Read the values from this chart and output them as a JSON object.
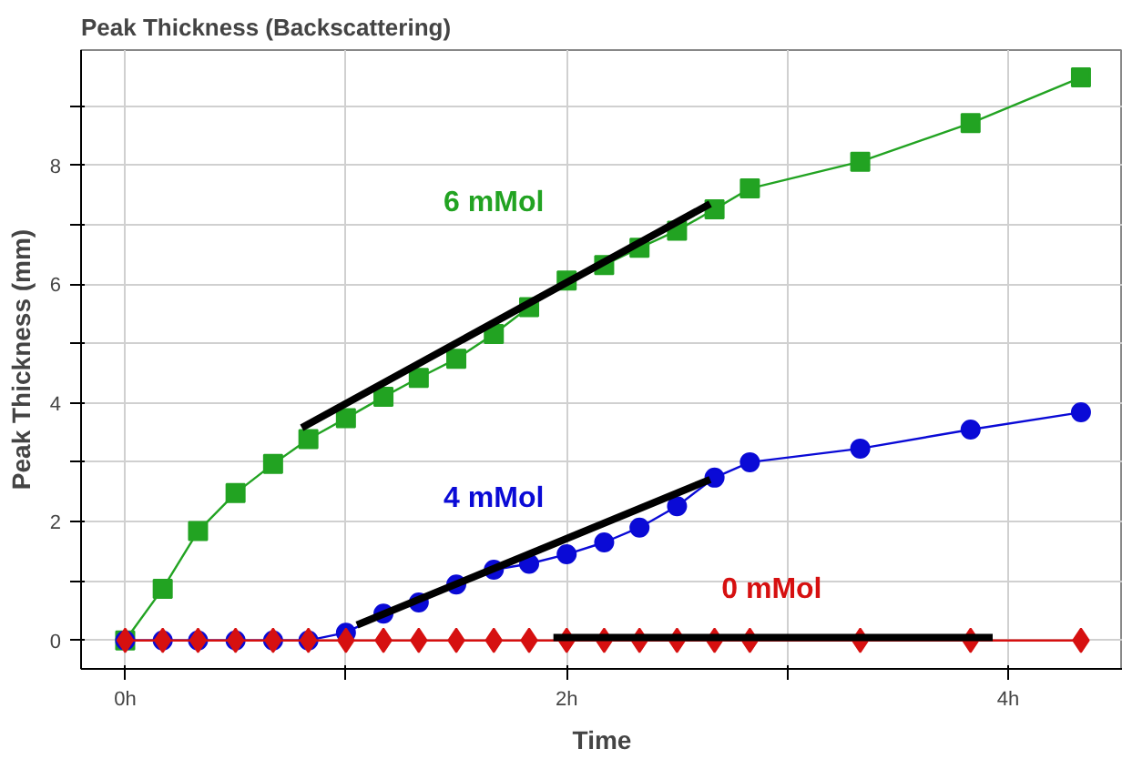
{
  "chart_data": {
    "type": "line",
    "title": "Peak Thickness (Backscattering)",
    "xlabel": "Time",
    "ylabel": "Peak Thickness (mm)",
    "x": [
      0,
      0.17,
      0.33,
      0.5,
      0.67,
      0.83,
      1.0,
      1.17,
      1.33,
      1.5,
      1.67,
      1.83,
      2.0,
      2.17,
      2.33,
      2.5,
      2.67,
      2.83,
      3.33,
      3.83,
      4.33
    ],
    "series": [
      {
        "name": "6 mMol",
        "color": "#22a322",
        "marker": "square",
        "values": [
          0,
          0.87,
          1.84,
          2.48,
          2.97,
          3.39,
          3.74,
          4.1,
          4.42,
          4.74,
          5.16,
          5.61,
          6.06,
          6.32,
          6.61,
          6.9,
          7.26,
          7.61,
          8.06,
          8.71,
          9.48
        ]
      },
      {
        "name": "4 mMol",
        "color": "#0a0ad6",
        "marker": "circle",
        "values": [
          0,
          0,
          0,
          0,
          0,
          0,
          0.13,
          0.45,
          0.64,
          0.94,
          1.19,
          1.29,
          1.45,
          1.65,
          1.9,
          2.26,
          2.74,
          3.0,
          3.23,
          3.55,
          3.84
        ]
      },
      {
        "name": "0 mMol",
        "color": "#d61010",
        "marker": "diamond",
        "values": [
          0,
          0,
          0,
          0,
          0,
          0,
          0,
          0,
          0,
          0,
          0,
          0,
          0,
          0,
          0,
          0,
          0,
          0,
          0,
          0,
          0
        ]
      },
      {
        "color": "#000000",
        "marker": "none",
        "x": [
          0.8,
          2.65
        ],
        "values": [
          3.58,
          7.35
        ]
      },
      {
        "color": "#000000",
        "marker": "none",
        "x": [
          1.05,
          2.65
        ],
        "values": [
          0.26,
          2.71
        ]
      },
      {
        "color": "#000000",
        "marker": "none",
        "x": [
          1.94,
          3.93
        ],
        "values": [
          0.05,
          0.05
        ]
      }
    ],
    "xlim": [
      -0.2,
      4.52
    ],
    "ylim": [
      -0.48,
      9.94
    ],
    "xticks": [
      {
        "value": 0,
        "label": "0h"
      },
      {
        "value": 1,
        "label": null
      },
      {
        "value": 2,
        "label": "2h"
      },
      {
        "value": 3,
        "label": null
      },
      {
        "value": 4,
        "label": "4h"
      }
    ],
    "yticks": [
      0,
      {
        "value": 1,
        "label": null
      },
      2,
      {
        "value": 3,
        "label": null
      },
      4,
      {
        "value": 5,
        "label": null
      },
      6,
      {
        "value": 7,
        "label": null
      },
      8,
      {
        "value": 9,
        "label": null
      }
    ],
    "grid": true
  }
}
